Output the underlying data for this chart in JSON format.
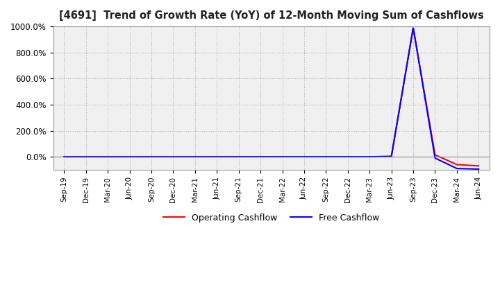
{
  "title": "[4691]  Trend of Growth Rate (YoY) of 12-Month Moving Sum of Cashflows",
  "background_color": "#ffffff",
  "plot_bg_color": "#f0f0f0",
  "grid_color": "#aaaaaa",
  "legend_labels": [
    "Operating Cashflow",
    "Free Cashflow"
  ],
  "line_colors": [
    "#ff0000",
    "#0000ff"
  ],
  "x_labels": [
    "Sep-19",
    "Dec-19",
    "Mar-20",
    "Jun-20",
    "Sep-20",
    "Dec-20",
    "Mar-21",
    "Jun-21",
    "Sep-21",
    "Dec-21",
    "Mar-22",
    "Jun-22",
    "Sep-22",
    "Dec-22",
    "Mar-23",
    "Jun-23",
    "Sep-23",
    "Dec-23",
    "Mar-24",
    "Jun-24"
  ],
  "ylim": [
    -100,
    1000
  ],
  "yticks": [
    0,
    200,
    400,
    600,
    800,
    1000
  ],
  "ytick_labels": [
    "0.0%",
    "200.0%",
    "400.0%",
    "600.0%",
    "800.0%",
    "1000.0%"
  ],
  "op_cashflow": [
    0,
    0,
    0,
    0,
    0,
    0,
    0,
    0,
    0,
    0,
    0,
    0,
    0,
    0,
    0,
    2,
    990,
    15,
    -60,
    -70
  ],
  "free_cashflow": [
    0,
    0,
    0,
    0,
    0,
    0,
    0,
    0,
    0,
    0,
    0,
    0,
    0,
    0,
    0,
    3,
    990,
    -10,
    -90,
    -95
  ]
}
